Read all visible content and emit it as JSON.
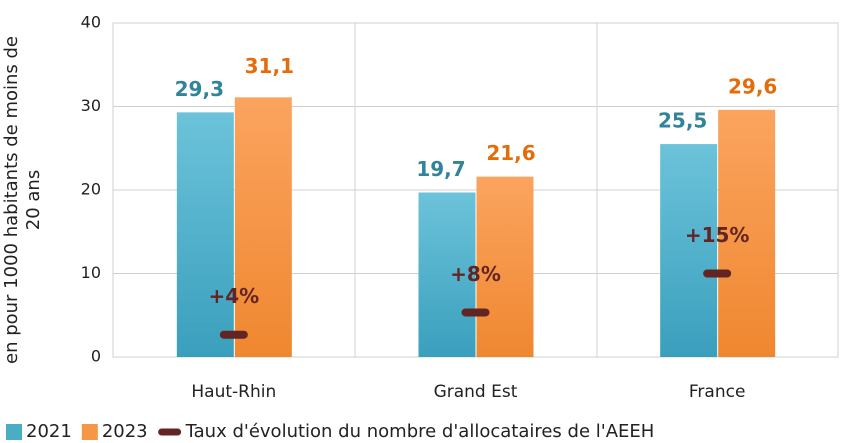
{
  "chart_data": {
    "type": "bar",
    "y_label": [
      "en pour 1000 habitants de moins de",
      "20 ans"
    ],
    "categories": [
      "Haut-Rhin",
      "Grand Est",
      "France"
    ],
    "series": [
      {
        "name": "2021",
        "color": "#4bacc6",
        "label_color": "#31849b",
        "values": [
          29.3,
          19.7,
          25.5
        ],
        "value_labels": [
          "29,3",
          "19,7",
          "25,5"
        ]
      },
      {
        "name": "2023",
        "color": "#f79646",
        "label_color": "#e46c0a",
        "values": [
          31.1,
          21.6,
          29.6
        ],
        "value_labels": [
          "31,1",
          "21,6",
          "29,6"
        ]
      },
      {
        "name": "Taux d'évolution du nombre d'allocataires de l'AEEH",
        "type": "marker",
        "axis": "y2",
        "color": "#632523",
        "values": [
          4,
          8,
          15
        ],
        "value_labels": [
          "+4%",
          "+8%",
          "+15%"
        ]
      }
    ],
    "ylim": [
      0,
      40
    ],
    "yticks": [
      0,
      10,
      20,
      30,
      40
    ],
    "y2lim": [
      0,
      60
    ],
    "grid": true,
    "legend": "bottom"
  }
}
